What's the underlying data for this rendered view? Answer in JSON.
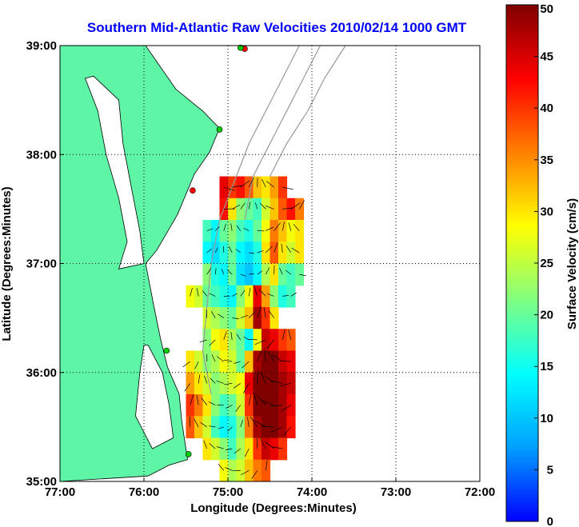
{
  "chart_data": {
    "type": "heatmap",
    "title": "Southern Mid-Atlantic Raw Velocities 2010/02/14 1000 GMT",
    "xlabel": "Longitude (Degrees:Minutes)",
    "ylabel": "Latitude (Degrees:Minutes)",
    "colorbar_label": "Surface Velocity (cm/s)",
    "xlim": [
      -77,
      -72
    ],
    "ylim": [
      35,
      39
    ],
    "x_ticks": [
      -77,
      -76,
      -75,
      -74,
      -73,
      -72
    ],
    "x_tick_labels": [
      "77:00",
      "76:00",
      "75:00",
      "74:00",
      "73:00",
      "72:00"
    ],
    "y_ticks": [
      35,
      36,
      37,
      38,
      39
    ],
    "y_tick_labels": [
      "35:00",
      "36:00",
      "37:00",
      "38:00",
      "39:00"
    ],
    "colorbar_range": [
      0,
      50
    ],
    "colorbar_ticks": [
      0,
      5,
      10,
      15,
      20,
      25,
      30,
      35,
      40,
      45,
      50
    ],
    "colorbar_tick_labels": [
      "0",
      "5",
      "10",
      "15",
      "20",
      "25",
      "30",
      "35",
      "40",
      "45",
      "50"
    ],
    "grid": true,
    "title_color": "#0000ff",
    "land_color": "#5ef5a6",
    "bathymetry_color": "#999999",
    "colormap": [
      "#0000ff",
      "#00a0ff",
      "#00ffff",
      "#80ff80",
      "#ffff00",
      "#ff8000",
      "#ff0000",
      "#800000"
    ],
    "stations": [
      {
        "lon": -74.8,
        "lat": 38.97,
        "color": "#ff0000"
      },
      {
        "lon": -74.85,
        "lat": 38.98,
        "color": "#00cc00"
      },
      {
        "lon": -75.1,
        "lat": 38.23,
        "color": "#00cc00"
      },
      {
        "lon": -75.42,
        "lat": 37.67,
        "color": "#ff0000"
      },
      {
        "lon": -75.73,
        "lat": 36.2,
        "color": "#00cc00"
      },
      {
        "lon": -75.47,
        "lat": 35.25,
        "color": "#00cc00"
      }
    ],
    "velocity_field": [
      {
        "lat": 37.7,
        "lon_start": -75.1,
        "values": [
          44,
          40,
          42,
          38,
          32,
          30,
          34,
          40
        ]
      },
      {
        "lat": 37.5,
        "lon_start": -75.1,
        "values": [
          42,
          30,
          22,
          20,
          18,
          26,
          32,
          38,
          42,
          36
        ]
      },
      {
        "lat": 37.3,
        "lon_start": -75.3,
        "values": [
          18,
          14,
          20,
          22,
          18,
          16,
          20,
          28,
          36,
          32,
          28,
          30
        ]
      },
      {
        "lat": 37.1,
        "lon_start": -75.3,
        "values": [
          14,
          12,
          16,
          20,
          14,
          12,
          16,
          30,
          38,
          30,
          26,
          30
        ]
      },
      {
        "lat": 36.9,
        "lon_start": -75.3,
        "values": [
          22,
          16,
          14,
          20,
          12,
          10,
          14,
          24,
          30,
          20,
          18,
          20
        ]
      },
      {
        "lat": 36.7,
        "lon_start": -75.5,
        "values": [
          28,
          26,
          20,
          18,
          16,
          14,
          22,
          28,
          44,
          34,
          22,
          16,
          18
        ]
      },
      {
        "lat": 36.5,
        "lon_start": -75.3,
        "values": [
          26,
          24,
          22,
          20,
          26,
          32,
          48,
          40,
          30
        ]
      },
      {
        "lat": 36.3,
        "lon_start": -75.3,
        "values": [
          22,
          28,
          30,
          24,
          20,
          14,
          28,
          46,
          44,
          40,
          38
        ]
      },
      {
        "lat": 36.1,
        "lon_start": -75.5,
        "values": [
          30,
          26,
          22,
          24,
          28,
          26,
          20,
          32,
          48,
          50,
          50,
          46,
          44
        ]
      },
      {
        "lat": 35.9,
        "lon_start": -75.5,
        "values": [
          34,
          30,
          26,
          22,
          24,
          26,
          28,
          44,
          50,
          50,
          50,
          48,
          46
        ]
      },
      {
        "lat": 35.7,
        "lon_start": -75.5,
        "values": [
          40,
          36,
          30,
          22,
          18,
          20,
          26,
          40,
          50,
          50,
          50,
          48,
          44
        ]
      },
      {
        "lat": 35.5,
        "lon_start": -75.5,
        "values": [
          38,
          32,
          26,
          18,
          14,
          16,
          22,
          36,
          48,
          50,
          50,
          48,
          42
        ]
      },
      {
        "lat": 35.3,
        "lon_start": -75.3,
        "values": [
          30,
          26,
          22,
          18,
          24,
          30,
          40,
          46,
          44,
          40
        ]
      },
      {
        "lat": 35.1,
        "lon_start": -75.1,
        "values": [
          28,
          24,
          26,
          32,
          36,
          38
        ]
      }
    ]
  }
}
